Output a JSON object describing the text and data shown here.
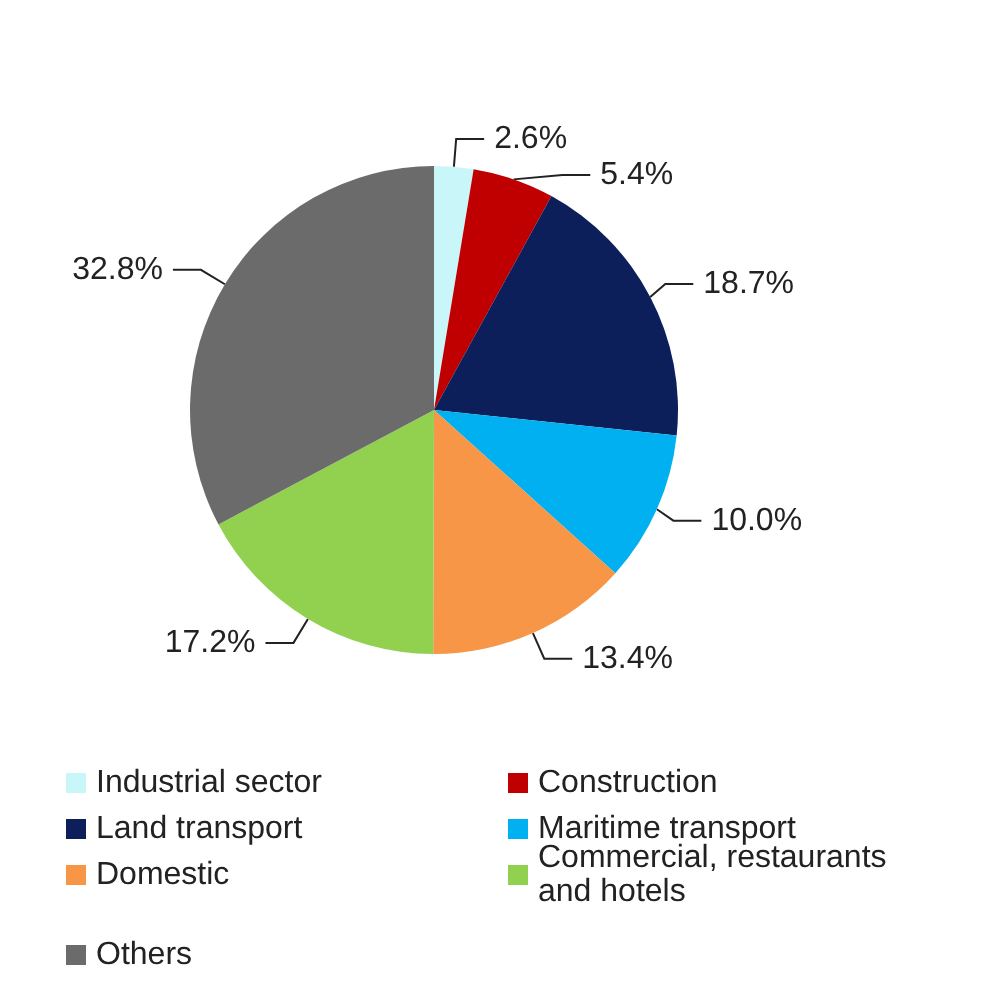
{
  "chart_data": {
    "type": "pie",
    "categories": [
      "Industrial sector",
      "Construction",
      "Land transport",
      "Maritime transport",
      "Domestic",
      "Commercial, restaurants and hotels",
      "Others"
    ],
    "values": [
      2.6,
      5.4,
      18.7,
      10.0,
      13.4,
      17.2,
      32.8
    ],
    "value_labels": [
      "2.6%",
      "5.4%",
      "18.7%",
      "10.0%",
      "13.4%",
      "17.2%",
      "32.8%"
    ],
    "colors": [
      "#c9f6f9",
      "#c00000",
      "#0c1f5b",
      "#00b0f0",
      "#f79646",
      "#92d050",
      "#6b6b6b"
    ],
    "legend": "bottom"
  }
}
